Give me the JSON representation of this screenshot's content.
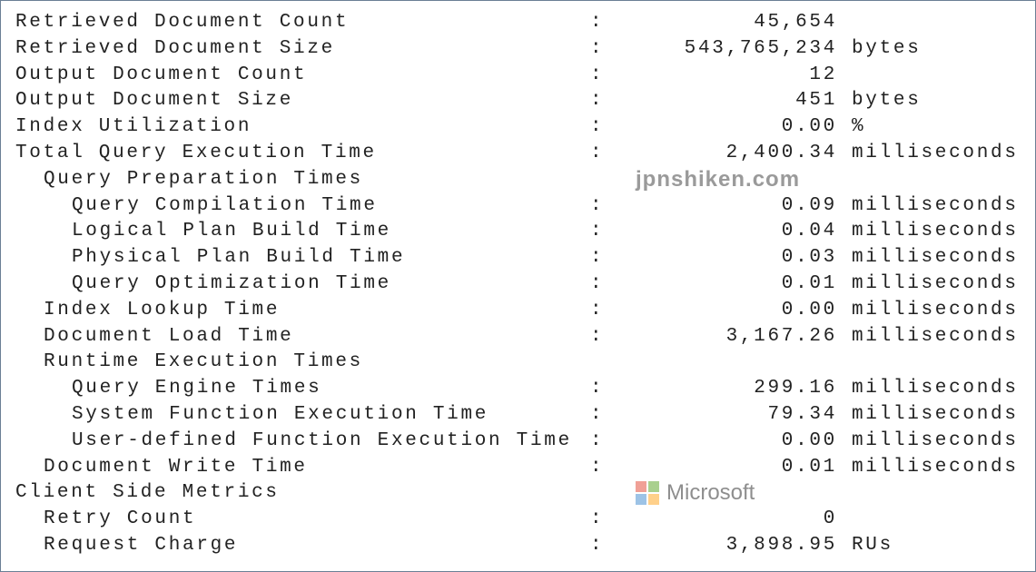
{
  "rows": [
    {
      "label": "Retrieved Document Count",
      "indent": 0,
      "value": "45,654",
      "unit": ""
    },
    {
      "label": "Retrieved Document Size",
      "indent": 0,
      "value": "543,765,234",
      "unit": "bytes"
    },
    {
      "label": "Output Document Count",
      "indent": 0,
      "value": "12",
      "unit": ""
    },
    {
      "label": "Output Document Size",
      "indent": 0,
      "value": "451",
      "unit": "bytes"
    },
    {
      "label": "Index Utilization",
      "indent": 0,
      "value": "0.00",
      "unit": "%"
    },
    {
      "label": "Total Query Execution Time",
      "indent": 0,
      "value": "2,400.34",
      "unit": "milliseconds"
    },
    {
      "label": "Query Preparation Times",
      "indent": 1,
      "value": "",
      "unit": ""
    },
    {
      "label": "Query Compilation Time",
      "indent": 2,
      "value": "0.09",
      "unit": "milliseconds"
    },
    {
      "label": "Logical Plan Build Time",
      "indent": 2,
      "value": "0.04",
      "unit": "milliseconds"
    },
    {
      "label": "Physical Plan Build Time",
      "indent": 2,
      "value": "0.03",
      "unit": "milliseconds"
    },
    {
      "label": "Query Optimization Time",
      "indent": 2,
      "value": "0.01",
      "unit": "milliseconds"
    },
    {
      "label": "Index Lookup Time",
      "indent": 1,
      "value": "0.00",
      "unit": "milliseconds"
    },
    {
      "label": "Document Load Time",
      "indent": 1,
      "value": "3,167.26",
      "unit": "milliseconds"
    },
    {
      "label": "Runtime Execution Times",
      "indent": 1,
      "value": "",
      "unit": ""
    },
    {
      "label": "Query Engine Times",
      "indent": 2,
      "value": "299.16",
      "unit": "milliseconds"
    },
    {
      "label": "System Function Execution Time",
      "indent": 2,
      "value": "79.34",
      "unit": "milliseconds"
    },
    {
      "label": "User-defined Function Execution Time",
      "indent": 2,
      "value": "0.00",
      "unit": "milliseconds"
    },
    {
      "label": "Document Write Time",
      "indent": 1,
      "value": "0.01",
      "unit": "milliseconds"
    },
    {
      "label": "Client Side Metrics",
      "indent": 0,
      "value": "",
      "unit": ""
    },
    {
      "label": "Retry Count",
      "indent": 1,
      "value": "0",
      "unit": ""
    },
    {
      "label": "Request Charge",
      "indent": 1,
      "value": "3,898.95",
      "unit": "RUs"
    }
  ],
  "separator": ":",
  "watermark": {
    "text": "jpnshiken.com",
    "logo_text": "Microsoft",
    "logo_colors": [
      "#f0a096",
      "#a9d08e",
      "#9dc3e6",
      "#ffd08a"
    ]
  }
}
